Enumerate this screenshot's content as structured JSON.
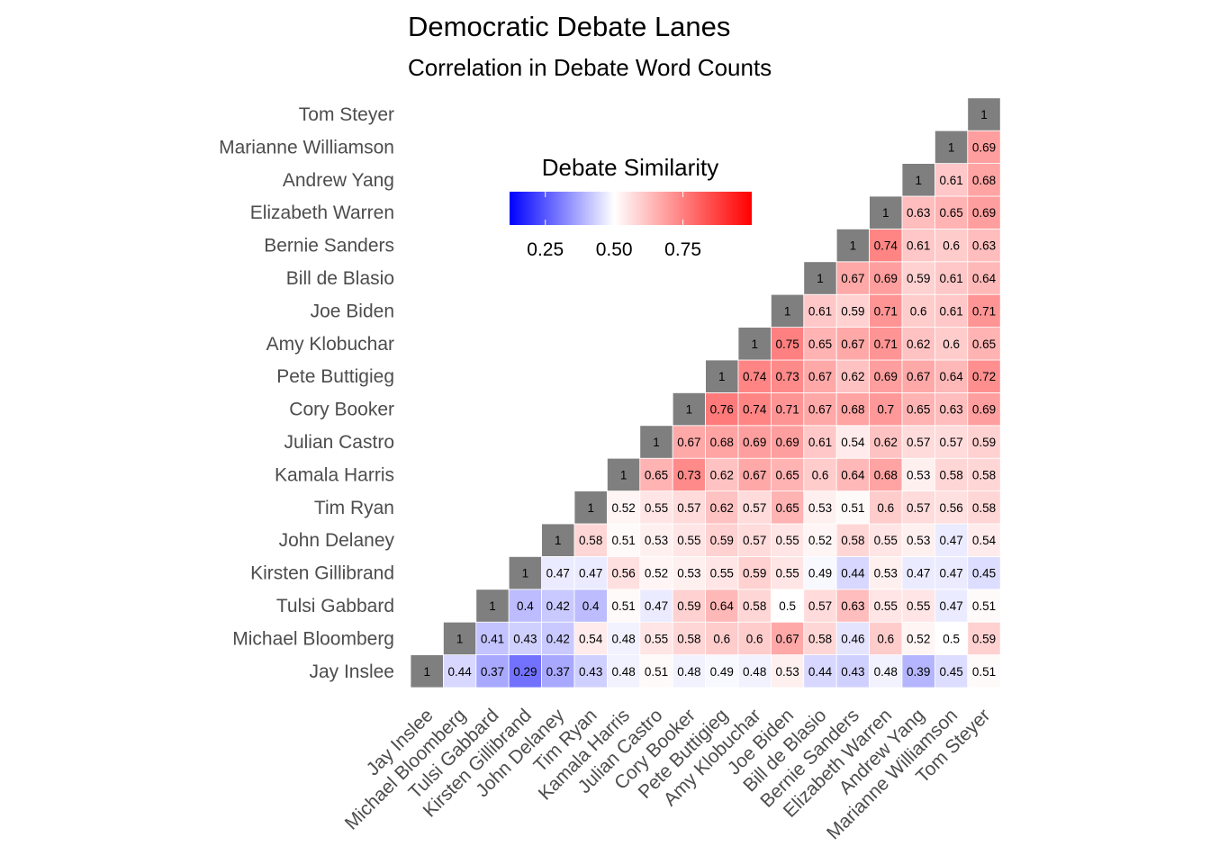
{
  "chart_data": {
    "type": "heatmap",
    "title": "Democratic Debate Lanes",
    "subtitle": "Correlation in Debate Word Counts",
    "legend": {
      "title": "Debate Similarity",
      "placement": "top-center (inside panel)",
      "ticks": [
        "0.25",
        "0.50",
        "0.75"
      ],
      "range": [
        0.12,
        1.0
      ],
      "midpoint": 0.5,
      "colors": {
        "low": "#0000ff",
        "mid": "#ffffff",
        "high": "#ff0000",
        "diagonal": "#7f7f7f"
      }
    },
    "candidates": [
      "Jay Inslee",
      "Michael Bloomberg",
      "Tulsi Gabbard",
      "Kirsten Gillibrand",
      "John Delaney",
      "Tim Ryan",
      "Kamala Harris",
      "Julian Castro",
      "Cory Booker",
      "Pete Buttigieg",
      "Amy Klobuchar",
      "Joe Biden",
      "Bill de Blasio",
      "Bernie Sanders",
      "Elizabeth Warren",
      "Andrew Yang",
      "Marianne Williamson",
      "Tom Steyer"
    ],
    "values": [
      [
        1,
        0.44,
        0.37,
        0.29,
        0.37,
        0.43,
        0.48,
        0.51,
        0.48,
        0.49,
        0.48,
        0.53,
        0.44,
        0.43,
        0.48,
        0.39,
        0.45,
        0.51
      ],
      [
        null,
        1,
        0.41,
        0.43,
        0.42,
        0.54,
        0.48,
        0.55,
        0.58,
        0.6,
        0.6,
        0.67,
        0.58,
        0.46,
        0.6,
        0.52,
        0.5,
        0.59
      ],
      [
        null,
        null,
        1,
        0.4,
        0.42,
        0.4,
        0.51,
        0.47,
        0.59,
        0.64,
        0.58,
        0.5,
        0.57,
        0.63,
        0.55,
        0.55,
        0.47,
        0.51
      ],
      [
        null,
        null,
        null,
        1,
        0.47,
        0.47,
        0.56,
        0.52,
        0.53,
        0.55,
        0.59,
        0.55,
        0.49,
        0.44,
        0.53,
        0.47,
        0.47,
        0.45
      ],
      [
        null,
        null,
        null,
        null,
        1,
        0.58,
        0.51,
        0.53,
        0.55,
        0.59,
        0.57,
        0.55,
        0.52,
        0.58,
        0.55,
        0.53,
        0.47,
        0.54
      ],
      [
        null,
        null,
        null,
        null,
        null,
        1,
        0.52,
        0.55,
        0.57,
        0.62,
        0.57,
        0.65,
        0.53,
        0.51,
        0.6,
        0.57,
        0.56,
        0.58
      ],
      [
        null,
        null,
        null,
        null,
        null,
        null,
        1,
        0.65,
        0.73,
        0.62,
        0.67,
        0.65,
        0.6,
        0.64,
        0.68,
        0.53,
        0.58,
        0.58
      ],
      [
        null,
        null,
        null,
        null,
        null,
        null,
        null,
        1,
        0.67,
        0.68,
        0.69,
        0.69,
        0.61,
        0.54,
        0.62,
        0.57,
        0.57,
        0.59
      ],
      [
        null,
        null,
        null,
        null,
        null,
        null,
        null,
        null,
        1,
        0.76,
        0.74,
        0.71,
        0.67,
        0.68,
        0.7,
        0.65,
        0.63,
        0.69
      ],
      [
        null,
        null,
        null,
        null,
        null,
        null,
        null,
        null,
        null,
        1,
        0.74,
        0.73,
        0.67,
        0.62,
        0.69,
        0.67,
        0.64,
        0.72
      ],
      [
        null,
        null,
        null,
        null,
        null,
        null,
        null,
        null,
        null,
        null,
        1,
        0.75,
        0.65,
        0.67,
        0.71,
        0.62,
        0.6,
        0.65
      ],
      [
        null,
        null,
        null,
        null,
        null,
        null,
        null,
        null,
        null,
        null,
        null,
        1,
        0.61,
        0.59,
        0.71,
        0.6,
        0.61,
        0.71
      ],
      [
        null,
        null,
        null,
        null,
        null,
        null,
        null,
        null,
        null,
        null,
        null,
        null,
        1,
        0.67,
        0.69,
        0.59,
        0.61,
        0.64
      ],
      [
        null,
        null,
        null,
        null,
        null,
        null,
        null,
        null,
        null,
        null,
        null,
        null,
        null,
        1,
        0.74,
        0.61,
        0.6,
        0.63
      ],
      [
        null,
        null,
        null,
        null,
        null,
        null,
        null,
        null,
        null,
        null,
        null,
        null,
        null,
        null,
        1,
        0.63,
        0.65,
        0.69
      ],
      [
        null,
        null,
        null,
        null,
        null,
        null,
        null,
        null,
        null,
        null,
        null,
        null,
        null,
        null,
        null,
        1,
        0.61,
        0.68
      ],
      [
        null,
        null,
        null,
        null,
        null,
        null,
        null,
        null,
        null,
        null,
        null,
        null,
        null,
        null,
        null,
        null,
        1,
        0.69
      ],
      [
        null,
        null,
        null,
        null,
        null,
        null,
        null,
        null,
        null,
        null,
        null,
        null,
        null,
        null,
        null,
        null,
        null,
        1
      ]
    ]
  }
}
